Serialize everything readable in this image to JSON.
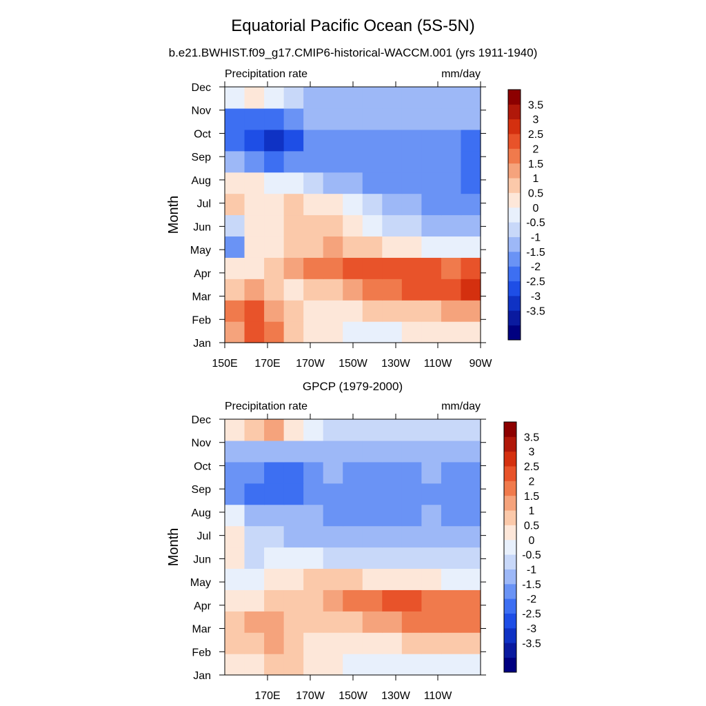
{
  "title": "Equatorial Pacific Ocean (5S-5N)",
  "subtitle": "b.e21.BWHIST.f09_g17.CMIP6-historical-WACCM.001 (yrs 1911-1940)",
  "colors": {
    "bins": [
      "#000080",
      "#0a1a9f",
      "#0f32c4",
      "#1e4ee6",
      "#3d6ff2",
      "#6a93f5",
      "#9db8f7",
      "#c8d8f9",
      "#e8f0fc",
      "#fde7d9",
      "#fbc9aa",
      "#f5a37c",
      "#f07a4c",
      "#e8532a",
      "#d4300f",
      "#b0180a",
      "#8c0000"
    ],
    "bin_edges": [
      -3.5,
      -3,
      -2.5,
      -2,
      -1.5,
      -1,
      -0.5,
      0,
      0.5,
      1,
      1.5,
      2,
      2.5,
      3,
      3.5
    ]
  },
  "chart_data": [
    {
      "type": "heatmap",
      "panel_title": "",
      "left_label": "Precipitation rate",
      "right_label": "mm/day",
      "ylabel": "Month",
      "xlabel": "",
      "x_ticks": [
        "150E",
        "170E",
        "170W",
        "150W",
        "130W",
        "110W",
        "90W"
      ],
      "y_ticks": [
        "Jan",
        "Feb",
        "Mar",
        "Apr",
        "May",
        "Jun",
        "Jul",
        "Aug",
        "Sep",
        "Oct",
        "Nov",
        "Dec"
      ],
      "colorbar_labels": [
        "3.5",
        "3",
        "2.5",
        "2",
        "1.5",
        "1",
        "0.5",
        "0",
        "-0.5",
        "-1",
        "-1.5",
        "-2",
        "-2.5",
        "-3",
        "-3.5"
      ],
      "x": [
        150,
        160,
        170,
        180,
        190,
        200,
        210,
        220,
        230,
        240,
        250,
        260,
        270
      ],
      "rows": [
        {
          "month": "Jan",
          "values": [
            1.8,
            2.8,
            2.4,
            1.2,
            0.8,
            0.6,
            0.4,
            0.4,
            0.4,
            0.5,
            0.5,
            0.5,
            0.6
          ]
        },
        {
          "month": "Feb",
          "values": [
            2.2,
            2.6,
            1.8,
            1.2,
            0.8,
            0.6,
            0.8,
            1.0,
            1.2,
            1.4,
            1.4,
            1.5,
            1.5
          ]
        },
        {
          "month": "Mar",
          "values": [
            1.4,
            1.6,
            1.2,
            0.8,
            1.0,
            1.4,
            1.8,
            2.2,
            2.4,
            2.6,
            2.8,
            2.8,
            3.0
          ]
        },
        {
          "month": "Apr",
          "values": [
            0.8,
            0.9,
            1.0,
            1.5,
            2.0,
            2.4,
            2.6,
            2.8,
            2.8,
            2.6,
            2.5,
            2.4,
            2.5
          ]
        },
        {
          "month": "May",
          "values": [
            -1.2,
            0.6,
            0.7,
            1.0,
            1.4,
            1.6,
            1.4,
            1.2,
            0.9,
            0.6,
            0.3,
            0.2,
            0.1
          ]
        },
        {
          "month": "Jun",
          "values": [
            -0.3,
            0.6,
            0.6,
            1.2,
            1.3,
            1.0,
            0.6,
            0.2,
            -0.2,
            -0.5,
            -0.8,
            -0.9,
            -1.0
          ]
        },
        {
          "month": "Jul",
          "values": [
            1.0,
            0.8,
            0.6,
            1.2,
            0.9,
            0.5,
            0.1,
            -0.3,
            -0.7,
            -1.0,
            -1.2,
            -1.3,
            -1.4
          ]
        },
        {
          "month": "Aug",
          "values": [
            0.9,
            0.6,
            0.3,
            0.0,
            -0.3,
            -0.6,
            -0.9,
            -1.1,
            -1.3,
            -1.4,
            -1.5,
            -1.5,
            -1.8
          ]
        },
        {
          "month": "Sep",
          "values": [
            -1.0,
            -1.4,
            -1.6,
            -1.5,
            -1.2,
            -1.2,
            -1.3,
            -1.3,
            -1.3,
            -1.3,
            -1.3,
            -1.4,
            -1.8
          ]
        },
        {
          "month": "Oct",
          "values": [
            -1.9,
            -2.2,
            -2.7,
            -2.2,
            -1.4,
            -1.2,
            -1.2,
            -1.2,
            -1.2,
            -1.2,
            -1.2,
            -1.3,
            -1.6
          ]
        },
        {
          "month": "Nov",
          "values": [
            -1.7,
            -1.8,
            -1.7,
            -1.4,
            -1.0,
            -0.8,
            -0.8,
            -0.8,
            -0.8,
            -0.8,
            -0.8,
            -0.8,
            -0.8
          ]
        },
        {
          "month": "Dec",
          "values": [
            0.3,
            0.7,
            0.3,
            -0.4,
            -0.6,
            -0.6,
            -0.6,
            -0.6,
            -0.6,
            -0.6,
            -0.6,
            -0.6,
            -0.6
          ]
        }
      ]
    },
    {
      "type": "heatmap",
      "panel_title": "GPCP (1979-2000)",
      "left_label": "Precipitation rate",
      "right_label": "mm/day",
      "ylabel": "Month",
      "xlabel": "",
      "x_ticks": [
        "170E",
        "170W",
        "150W",
        "130W",
        "110W"
      ],
      "y_ticks": [
        "Jan",
        "Feb",
        "Mar",
        "Apr",
        "May",
        "Jun",
        "Jul",
        "Aug",
        "Sep",
        "Oct",
        "Nov",
        "Dec"
      ],
      "colorbar_labels": [
        "3.5",
        "3",
        "2.5",
        "2",
        "1.5",
        "1",
        "0.5",
        "0",
        "-0.5",
        "-1",
        "-1.5",
        "-2",
        "-2.5",
        "-3",
        "-3.5"
      ],
      "x": [
        150,
        160,
        170,
        180,
        190,
        200,
        210,
        220,
        230,
        240,
        250,
        260,
        270
      ],
      "rows": [
        {
          "month": "Jan",
          "values": [
            0.6,
            0.9,
            1.3,
            1.0,
            0.6,
            0.5,
            0.4,
            0.3,
            0.3,
            0.3,
            0.3,
            0.4,
            0.4
          ]
        },
        {
          "month": "Feb",
          "values": [
            1.2,
            1.4,
            1.8,
            1.4,
            0.9,
            0.8,
            0.8,
            0.9,
            0.9,
            1.0,
            1.0,
            1.1,
            1.1
          ]
        },
        {
          "month": "Mar",
          "values": [
            1.4,
            1.6,
            1.6,
            1.4,
            1.1,
            1.2,
            1.4,
            1.6,
            1.9,
            2.2,
            2.2,
            2.0,
            2.1
          ]
        },
        {
          "month": "Apr",
          "values": [
            0.6,
            0.8,
            1.0,
            1.2,
            1.3,
            1.8,
            2.0,
            2.2,
            2.5,
            2.5,
            2.3,
            2.4,
            2.4
          ]
        },
        {
          "month": "May",
          "values": [
            0.2,
            0.1,
            0.5,
            0.8,
            1.0,
            1.2,
            1.1,
            0.9,
            0.8,
            0.6,
            0.5,
            0.4,
            0.3
          ]
        },
        {
          "month": "Jun",
          "values": [
            0.8,
            -0.2,
            0.4,
            0.3,
            0.1,
            -0.2,
            -0.3,
            -0.3,
            -0.4,
            -0.4,
            -0.4,
            -0.4,
            -0.3
          ]
        },
        {
          "month": "Jul",
          "values": [
            0.9,
            -0.3,
            -0.4,
            -0.6,
            -0.7,
            -0.8,
            -0.8,
            -0.8,
            -0.9,
            -0.9,
            -0.8,
            -0.8,
            -0.8
          ]
        },
        {
          "month": "Aug",
          "values": [
            0.4,
            -0.6,
            -0.8,
            -0.9,
            -1.0,
            -1.1,
            -1.1,
            -1.1,
            -1.2,
            -1.1,
            -1.0,
            -1.1,
            -1.1
          ]
        },
        {
          "month": "Sep",
          "values": [
            -1.4,
            -1.6,
            -1.8,
            -1.6,
            -1.3,
            -1.1,
            -1.2,
            -1.3,
            -1.3,
            -1.2,
            -1.1,
            -1.2,
            -1.2
          ]
        },
        {
          "month": "Oct",
          "values": [
            -1.2,
            -1.4,
            -2.0,
            -1.6,
            -1.2,
            -1.0,
            -1.1,
            -1.2,
            -1.2,
            -1.1,
            -1.0,
            -1.1,
            -1.2
          ]
        },
        {
          "month": "Nov",
          "values": [
            -0.9,
            -0.8,
            -0.9,
            -0.7,
            -0.6,
            -0.6,
            -0.6,
            -0.6,
            -0.6,
            -0.6,
            -0.6,
            -0.6,
            -0.6
          ]
        },
        {
          "month": "Dec",
          "values": [
            0.6,
            1.1,
            1.6,
            0.9,
            0.1,
            -0.2,
            -0.3,
            -0.3,
            -0.3,
            -0.3,
            -0.4,
            -0.4,
            -0.4
          ]
        }
      ]
    }
  ]
}
